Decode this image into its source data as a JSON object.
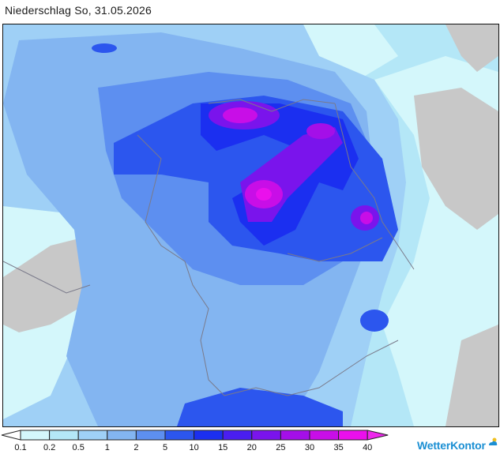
{
  "title": "Niederschlag So, 31.05.2026",
  "legend": {
    "labels": [
      "0.1",
      "0.2",
      "0.5",
      "1",
      "2",
      "5",
      "10",
      "15",
      "20",
      "25",
      "30",
      "35",
      "40"
    ],
    "colors": [
      "#ffffff",
      "#d4f7fb",
      "#b4e7f7",
      "#9fd0f6",
      "#83b5f1",
      "#5d8ff0",
      "#2c56ee",
      "#1b2ff0",
      "#4a1ef0",
      "#7a14ec",
      "#a40fe8",
      "#c80ee7",
      "#ea10ec",
      "#ee28ec"
    ]
  },
  "brand": {
    "name": "WetterKontor",
    "color": "#1b8fd3",
    "icon": "sun-cloud-icon"
  },
  "map": {
    "sea_color": "#a9d7f5",
    "land_outside_color": "#c8c8c8",
    "border_color": "#7a7a8a"
  }
}
